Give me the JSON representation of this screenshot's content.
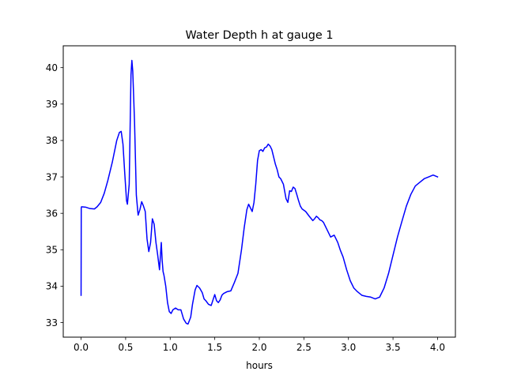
{
  "chart_data": {
    "type": "line",
    "title": "Water Depth h at gauge 1",
    "xlabel": "hours",
    "ylabel": "",
    "xlim": [
      -0.2,
      4.2
    ],
    "ylim": [
      32.6,
      40.6
    ],
    "xticks": [
      0.0,
      0.5,
      1.0,
      1.5,
      2.0,
      2.5,
      3.0,
      3.5,
      4.0
    ],
    "xtick_labels": [
      "0.0",
      "0.5",
      "1.0",
      "1.5",
      "2.0",
      "2.5",
      "3.0",
      "3.5",
      "4.0"
    ],
    "yticks": [
      33,
      34,
      35,
      36,
      37,
      38,
      39,
      40
    ],
    "ytick_labels": [
      "33",
      "34",
      "35",
      "36",
      "37",
      "38",
      "39",
      "40"
    ],
    "grid": false,
    "legend": "none",
    "series": [
      {
        "color": "#0000ff",
        "x": [
          0.0,
          0.002,
          0.005,
          0.05,
          0.1,
          0.15,
          0.18,
          0.22,
          0.26,
          0.3,
          0.35,
          0.4,
          0.43,
          0.45,
          0.47,
          0.49,
          0.51,
          0.52,
          0.54,
          0.56,
          0.57,
          0.58,
          0.6,
          0.62,
          0.64,
          0.66,
          0.68,
          0.7,
          0.72,
          0.74,
          0.76,
          0.78,
          0.8,
          0.82,
          0.84,
          0.86,
          0.88,
          0.9,
          0.91,
          0.92,
          0.93,
          0.95,
          0.97,
          0.99,
          1.01,
          1.03,
          1.06,
          1.09,
          1.12,
          1.15,
          1.18,
          1.2,
          1.23,
          1.25,
          1.28,
          1.3,
          1.33,
          1.36,
          1.38,
          1.4,
          1.43,
          1.46,
          1.48,
          1.5,
          1.52,
          1.54,
          1.56,
          1.58,
          1.6,
          1.64,
          1.68,
          1.72,
          1.76,
          1.8,
          1.83,
          1.86,
          1.88,
          1.9,
          1.92,
          1.94,
          1.96,
          1.98,
          2.0,
          2.02,
          2.04,
          2.06,
          2.08,
          2.1,
          2.12,
          2.14,
          2.16,
          2.18,
          2.2,
          2.22,
          2.24,
          2.27,
          2.3,
          2.32,
          2.34,
          2.36,
          2.38,
          2.4,
          2.42,
          2.44,
          2.46,
          2.48,
          2.52,
          2.56,
          2.6,
          2.62,
          2.64,
          2.66,
          2.68,
          2.7,
          2.72,
          2.76,
          2.8,
          2.84,
          2.88,
          2.91,
          2.94,
          2.98,
          3.02,
          3.06,
          3.1,
          3.15,
          3.2,
          3.25,
          3.3,
          3.35,
          3.4,
          3.45,
          3.5,
          3.55,
          3.6,
          3.65,
          3.7,
          3.75,
          3.8,
          3.85,
          3.9,
          3.95,
          4.0
        ],
        "y": [
          33.75,
          36.15,
          36.18,
          36.17,
          36.13,
          36.12,
          36.18,
          36.3,
          36.55,
          36.9,
          37.4,
          38.0,
          38.22,
          38.25,
          37.9,
          37.1,
          36.35,
          36.25,
          36.8,
          39.8,
          40.2,
          39.9,
          38.5,
          36.5,
          35.95,
          36.1,
          36.32,
          36.2,
          36.05,
          35.3,
          34.95,
          35.2,
          35.85,
          35.7,
          35.2,
          34.85,
          34.45,
          35.2,
          34.7,
          34.4,
          34.3,
          34.0,
          33.55,
          33.3,
          33.25,
          33.35,
          33.4,
          33.35,
          33.35,
          33.1,
          32.98,
          32.96,
          33.15,
          33.5,
          33.9,
          34.02,
          33.95,
          33.82,
          33.65,
          33.6,
          33.5,
          33.47,
          33.62,
          33.77,
          33.6,
          33.55,
          33.62,
          33.75,
          33.8,
          33.85,
          33.87,
          34.1,
          34.35,
          35.0,
          35.6,
          36.1,
          36.25,
          36.15,
          36.05,
          36.3,
          36.8,
          37.45,
          37.72,
          37.75,
          37.7,
          37.8,
          37.82,
          37.9,
          37.85,
          37.75,
          37.55,
          37.35,
          37.2,
          37.0,
          36.95,
          36.8,
          36.4,
          36.3,
          36.62,
          36.6,
          36.72,
          36.68,
          36.52,
          36.35,
          36.2,
          36.12,
          36.05,
          35.92,
          35.8,
          35.85,
          35.92,
          35.88,
          35.82,
          35.8,
          35.75,
          35.55,
          35.35,
          35.4,
          35.2,
          34.98,
          34.8,
          34.45,
          34.15,
          33.95,
          33.85,
          33.75,
          33.72,
          33.7,
          33.65,
          33.7,
          33.95,
          34.35,
          34.85,
          35.35,
          35.78,
          36.2,
          36.52,
          36.75,
          36.85,
          36.95,
          37.0,
          37.05,
          37.0
        ]
      }
    ]
  }
}
